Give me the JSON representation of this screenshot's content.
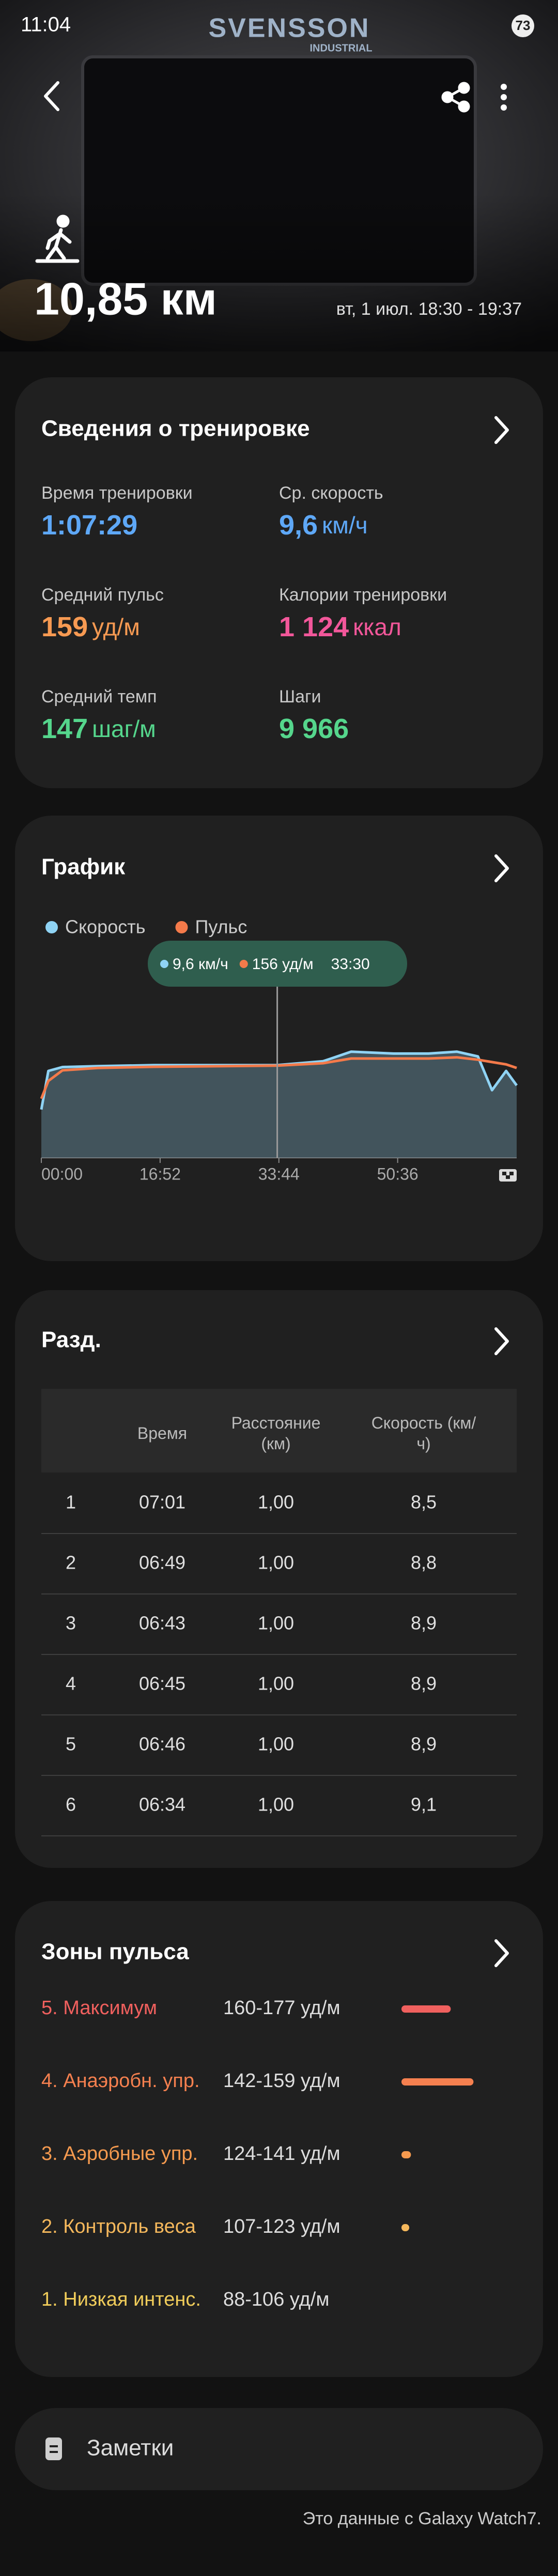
{
  "status": {
    "time": "11:04",
    "battery": "73"
  },
  "photo": {
    "brand": "SVENSSON",
    "sub_brand": "INDUSTRIAL"
  },
  "header": {
    "distance": "10,85 км",
    "date": "вт, 1 июл. 18:30 - 19:37"
  },
  "summary": {
    "title": "Сведения о тренировке",
    "items": [
      {
        "label": "Время тренировки",
        "value": "1:07:29",
        "color": "#5ea8f7"
      },
      {
        "label": "Ср. скорость",
        "value": "9,6",
        "unit": "км/ч",
        "color": "#5ea8f7"
      },
      {
        "label": "Средний пульс",
        "value": "159",
        "unit": "уд/м",
        "color": "#f79a52"
      },
      {
        "label": "Калории тренировки",
        "value": "1 124",
        "unit": "ккал",
        "color": "#f2579a"
      },
      {
        "label": "Средний темп",
        "value": "147",
        "unit": "шаг/м",
        "color": "#55d68c"
      },
      {
        "label": "Шаги",
        "value": "9 966",
        "color": "#55d68c"
      }
    ]
  },
  "chart_data": {
    "type": "line",
    "title": "График",
    "x": [
      0,
      1,
      3,
      8,
      16,
      25,
      33.5,
      40,
      44,
      50,
      55,
      59,
      62,
      64,
      66,
      67.5
    ],
    "xlim": [
      0,
      67.5
    ],
    "xticks": [
      {
        "value": 0,
        "label": "00:00"
      },
      {
        "value": 16.867,
        "label": "16:52"
      },
      {
        "value": 33.733,
        "label": "33:44"
      },
      {
        "value": 50.6,
        "label": "50:36"
      }
    ],
    "ylim": [
      0,
      15
    ],
    "y2lim": [
      0,
      245
    ],
    "series": [
      {
        "name": "Скорость",
        "color": "#8fd3f4",
        "values": [
          5.0,
          9.0,
          9.4,
          9.5,
          9.6,
          9.6,
          9.6,
          10.0,
          11.0,
          10.8,
          10.8,
          11.0,
          10.5,
          7.0,
          9.0,
          7.5
        ]
      },
      {
        "name": "Пульс",
        "color": "#f47a4a",
        "axis": "y2",
        "values": [
          100,
          130,
          148,
          152,
          154,
          155,
          156,
          160,
          168,
          168,
          168,
          170,
          166,
          162,
          158,
          152
        ]
      }
    ],
    "tooltip": {
      "x": 33.5,
      "x_label": "33:30",
      "values": [
        9.6,
        156
      ],
      "value_labels": [
        "9,6 км/ч",
        "156 уд/м"
      ]
    }
  },
  "splits": {
    "title": "Разд.",
    "headers": {
      "time": "Время",
      "distance": "Расстояние (км)",
      "speed": "Скорость (км/ч)"
    },
    "rows": [
      [
        "1",
        "07:01",
        "1,00",
        "8,5"
      ],
      [
        "2",
        "06:49",
        "1,00",
        "8,8"
      ],
      [
        "3",
        "06:43",
        "1,00",
        "8,9"
      ],
      [
        "4",
        "06:45",
        "1,00",
        "8,9"
      ],
      [
        "5",
        "06:46",
        "1,00",
        "8,9"
      ],
      [
        "6",
        "06:34",
        "1,00",
        "9,1"
      ]
    ]
  },
  "zones": {
    "title": "Зоны пульса",
    "items": [
      {
        "name": "5. Максимум",
        "range": "160-177 уд/м",
        "share": 37,
        "color": "#f0605e"
      },
      {
        "name": "4. Анаэробн. упр.",
        "range": "142-159 уд/м",
        "share": 57,
        "color": "#f5804f"
      },
      {
        "name": "3. Аэробные упр.",
        "range": "124-141 уд/м",
        "share": 2,
        "color": "#f59a4f"
      },
      {
        "name": "2. Контроль веса",
        "range": "107-123 уд/м",
        "share": 0.5,
        "color": "#f5b85c"
      },
      {
        "name": "1. Низкая интенс.",
        "range": "88-106 уд/м",
        "share": 0,
        "color": "#f0cc5a"
      }
    ]
  },
  "notes": {
    "label": "Заметки"
  },
  "footer": {
    "source": "Это данные с Galaxy Watch7."
  }
}
